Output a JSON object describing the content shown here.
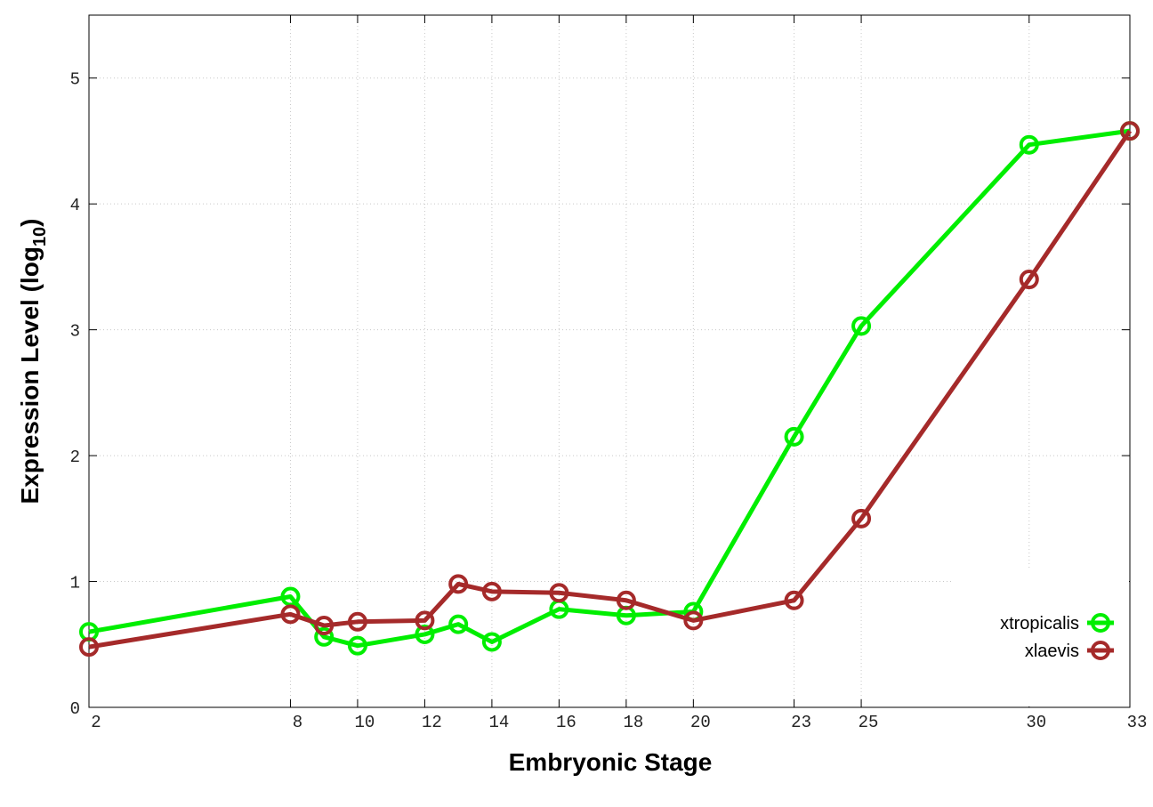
{
  "chart_data": {
    "type": "line",
    "x_label": "Embryonic Stage",
    "y_label": {
      "text": "Expression Level (log",
      "subscript": "10",
      "suffix": ")"
    },
    "x": [
      2,
      8,
      9,
      10,
      12,
      13,
      14,
      16,
      18,
      20,
      23,
      25,
      30,
      33
    ],
    "series": [
      {
        "name": "xtropicalis",
        "color": "#00ee00",
        "values": [
          0.6,
          0.88,
          0.56,
          0.49,
          0.58,
          0.66,
          0.52,
          0.78,
          0.73,
          0.76,
          2.15,
          3.03,
          4.47,
          4.58
        ]
      },
      {
        "name": "xlaevis",
        "color": "#a52a2a",
        "values": [
          0.48,
          0.74,
          0.65,
          0.68,
          0.69,
          0.98,
          0.92,
          0.91,
          0.85,
          0.69,
          0.85,
          1.5,
          3.4,
          4.58
        ]
      }
    ],
    "xlim": [
      2,
      33
    ],
    "xticks": [
      2,
      8,
      10,
      12,
      14,
      16,
      18,
      20,
      23,
      25,
      30,
      33
    ],
    "ylim": [
      0,
      5.5
    ],
    "yticks": [
      0,
      1,
      2,
      3,
      4,
      5
    ],
    "grid": true,
    "legend": "bottom-right"
  }
}
